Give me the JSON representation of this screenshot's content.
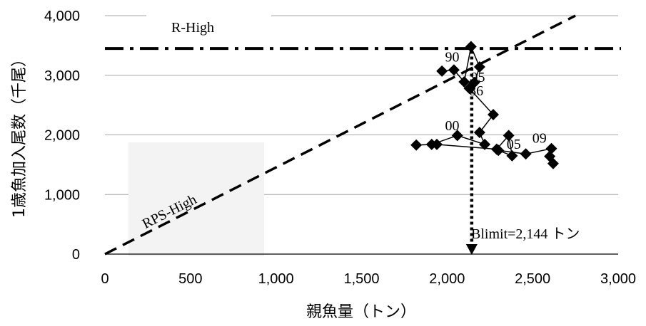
{
  "chart_data": {
    "type": "scatter",
    "title": "",
    "xlabel": "親魚量（トン）",
    "ylabel": "1歳魚加入尾数（千尾）",
    "xlim": [
      0,
      3000
    ],
    "ylim": [
      0,
      4000
    ],
    "x_ticks": [
      0,
      500,
      1000,
      1500,
      2000,
      2500,
      3000
    ],
    "x_tick_labels": [
      "0",
      "500",
      "1,000",
      "1,500",
      "2,000",
      "2,500",
      "3,000"
    ],
    "y_ticks": [
      0,
      1000,
      2000,
      3000,
      4000
    ],
    "y_tick_labels": [
      "0",
      "1,000",
      "2,000",
      "3,000",
      "4,000"
    ],
    "grid": "horizontal",
    "series": [
      {
        "marker": "diamond",
        "connected": true,
        "x": [
          1970,
          2040,
          2100,
          2140,
          2190,
          2160,
          2130,
          2270,
          2190,
          2220,
          2060,
          1910,
          1820,
          1940,
          2290,
          2360,
          2380,
          2300,
          2460,
          2610,
          2600,
          2620
        ],
        "y": [
          3070,
          3090,
          2890,
          3480,
          3140,
          2880,
          2780,
          2340,
          2040,
          1840,
          1990,
          1840,
          1830,
          1840,
          1760,
          1990,
          1650,
          1740,
          1680,
          1770,
          1640,
          1520
        ]
      }
    ],
    "point_labels": [
      {
        "text": "90",
        "x": 2030,
        "y": 3230
      },
      {
        "text": "95",
        "x": 2180,
        "y": 2890
      },
      {
        "text": "86",
        "x": 2170,
        "y": 2660
      },
      {
        "text": "00",
        "x": 2030,
        "y": 2080
      },
      {
        "text": "05",
        "x": 2390,
        "y": 1770
      },
      {
        "text": "09",
        "x": 2540,
        "y": 1870
      }
    ],
    "reference_lines": {
      "r_high": {
        "label": "R-High",
        "y": 3450
      },
      "rps_high": {
        "label": "RPS-High",
        "points": [
          [
            0,
            0
          ],
          [
            2750,
            4000
          ]
        ]
      },
      "blimit": {
        "label": "Blimit=2,144 トン",
        "x": 2144
      }
    }
  }
}
